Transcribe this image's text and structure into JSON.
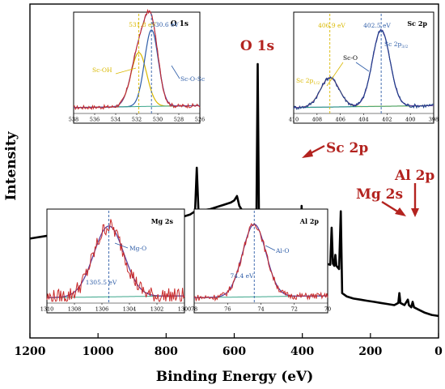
{
  "chart_data": {
    "main": {
      "type": "line",
      "xlabel": "Binding Energy (eV)",
      "ylabel": "Intensity",
      "xlim": [
        1200,
        0
      ],
      "x_ticks": [
        "1200",
        "1000",
        "800",
        "600",
        "400",
        "200",
        "0"
      ],
      "annotations": [
        {
          "label": "O 1s",
          "x": 531
        },
        {
          "label": "Sc 2p",
          "x": 402
        },
        {
          "label": "Mg 2s",
          "x": 89
        },
        {
          "label": "Al 2p",
          "x": 74
        }
      ],
      "spectrum": [
        [
          1200,
          215
        ],
        [
          1180,
          214
        ],
        [
          1160,
          213
        ],
        [
          1140,
          212
        ],
        [
          1120,
          211
        ],
        [
          1100,
          210
        ],
        [
          1080,
          209
        ],
        [
          1060,
          208
        ],
        [
          1040,
          207
        ],
        [
          1020,
          206
        ],
        [
          1005,
          204
        ],
        [
          998,
          207
        ],
        [
          992,
          210
        ],
        [
          986,
          205
        ],
        [
          979,
          200
        ],
        [
          975,
          208
        ],
        [
          970,
          207
        ],
        [
          950,
          206
        ],
        [
          930,
          205
        ],
        [
          910,
          204
        ],
        [
          890,
          203
        ],
        [
          870,
          202
        ],
        [
          850,
          201
        ],
        [
          830,
          200
        ],
        [
          810,
          199
        ],
        [
          800,
          198
        ],
        [
          790,
          197
        ],
        [
          770,
          196
        ],
        [
          750,
          195
        ],
        [
          730,
          193
        ],
        [
          715,
          190
        ],
        [
          710,
          150
        ],
        [
          705,
          190
        ],
        [
          690,
          189
        ],
        [
          670,
          188
        ],
        [
          650,
          186
        ],
        [
          630,
          184
        ],
        [
          610,
          182
        ],
        [
          600,
          180
        ],
        [
          592,
          176
        ],
        [
          585,
          185
        ],
        [
          575,
          190
        ],
        [
          562,
          196
        ],
        [
          552,
          200
        ],
        [
          540,
          205
        ],
        [
          535,
          200
        ],
        [
          531,
          55
        ],
        [
          527,
          210
        ],
        [
          520,
          225
        ],
        [
          510,
          222
        ],
        [
          500,
          219
        ],
        [
          494,
          215
        ],
        [
          490,
          218
        ],
        [
          480,
          226
        ],
        [
          470,
          228
        ],
        [
          460,
          229
        ],
        [
          440,
          230
        ],
        [
          420,
          231
        ],
        [
          408,
          232
        ],
        [
          406,
          205
        ],
        [
          404,
          222
        ],
        [
          402,
          185
        ],
        [
          400,
          232
        ],
        [
          395,
          235
        ],
        [
          380,
          236
        ],
        [
          360,
          237
        ],
        [
          355,
          225
        ],
        [
          350,
          237
        ],
        [
          345,
          238
        ],
        [
          330,
          238
        ],
        [
          318,
          239
        ],
        [
          314,
          205
        ],
        [
          310,
          238
        ],
        [
          306,
          240
        ],
        [
          303,
          230
        ],
        [
          300,
          240
        ],
        [
          292,
          243
        ],
        [
          287,
          190
        ],
        [
          283,
          265
        ],
        [
          270,
          268
        ],
        [
          250,
          270
        ],
        [
          230,
          271
        ],
        [
          210,
          272
        ],
        [
          190,
          273
        ],
        [
          170,
          274
        ],
        [
          150,
          275
        ],
        [
          130,
          276
        ],
        [
          118,
          274
        ],
        [
          115,
          265
        ],
        [
          112,
          274
        ],
        [
          100,
          276
        ],
        [
          90,
          271
        ],
        [
          87,
          276
        ],
        [
          80,
          278
        ],
        [
          76,
          273
        ],
        [
          72,
          278
        ],
        [
          60,
          280
        ],
        [
          40,
          283
        ],
        [
          20,
          285
        ],
        [
          0,
          286
        ]
      ]
    },
    "insets": [
      {
        "name": "O 1s",
        "xlim": [
          538,
          526
        ],
        "x_ticks": [
          "538",
          "536",
          "534",
          "532",
          "530",
          "528",
          "526"
        ],
        "peaks": [
          {
            "label": "531.8 eV",
            "x": 531.8,
            "color": "#d9b800"
          },
          {
            "label": "530.6 eV",
            "x": 530.6,
            "color": "#2f5ea8"
          }
        ],
        "components": [
          {
            "name": "Sc-OH",
            "center": 531.8,
            "sigma": 0.75,
            "amp": 0.55,
            "color": "#d9b800"
          },
          {
            "name": "Sc-O-Sc",
            "center": 530.6,
            "sigma": 0.65,
            "amp": 0.78,
            "color": "#2f5ea8"
          }
        ]
      },
      {
        "name": "Sc 2p",
        "xlim": [
          410,
          398
        ],
        "x_ticks": [
          "410",
          "408",
          "406",
          "404",
          "402",
          "400",
          "398"
        ],
        "peaks": [
          {
            "label": "406.9 eV",
            "x": 406.9,
            "color": "#d9b800"
          },
          {
            "label": "402.5 eV",
            "x": 402.5,
            "color": "#2f5ea8"
          }
        ],
        "labels": [
          {
            "text": "Sc 2p",
            "sub": "1/2",
            "color": "#d9b800"
          },
          {
            "text": "Sc-O",
            "color": "#000000"
          },
          {
            "text": "Sc 2p",
            "sub": "3/2",
            "color": "#2f5ea8"
          }
        ],
        "components": [
          {
            "center": 406.9,
            "sigma": 0.8,
            "amp": 0.3
          },
          {
            "center": 402.5,
            "sigma": 0.75,
            "amp": 0.78
          }
        ]
      },
      {
        "name": "Mg 2s",
        "xlim": [
          1310,
          1300
        ],
        "x_ticks": [
          "1310",
          "1308",
          "1306",
          "1304",
          "1302",
          "1300"
        ],
        "peak_label": "1305.5 eV",
        "peak_x": 1305.5,
        "component_label": "Mg-O",
        "components": [
          {
            "center": 1305.5,
            "sigma": 1.1,
            "amp": 0.78
          }
        ]
      },
      {
        "name": "Al 2p",
        "xlim": [
          78,
          70
        ],
        "x_ticks": [
          "78",
          "76",
          "74",
          "72",
          "70"
        ],
        "peak_label": "74.4 eV",
        "peak_x": 74.4,
        "component_label": "Al-O",
        "components": [
          {
            "center": 74.4,
            "sigma": 0.7,
            "amp": 0.8
          }
        ]
      }
    ]
  }
}
